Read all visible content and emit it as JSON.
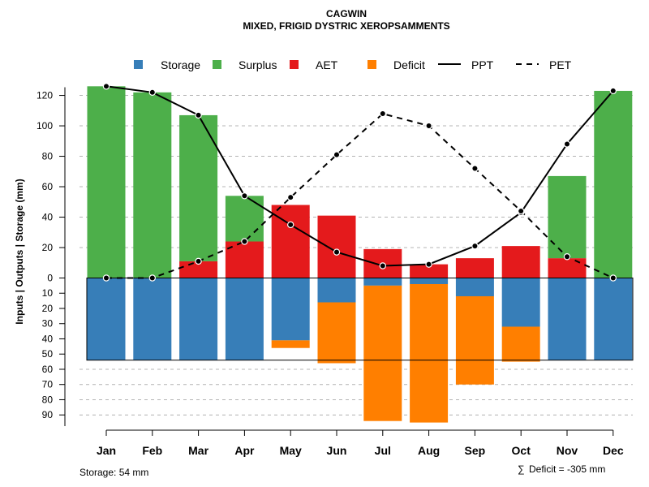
{
  "chart_data": {
    "type": "bar",
    "title": "CAGWIN",
    "subtitle": "MIXED, FRIGID DYSTRIC XEROPSAMMENTS",
    "ylabel": "Inputs | Outputs | Storage    (mm)",
    "categories": [
      "Jan",
      "Feb",
      "Mar",
      "Apr",
      "May",
      "Jun",
      "Jul",
      "Aug",
      "Sep",
      "Oct",
      "Nov",
      "Dec"
    ],
    "y_upper_ticks": [
      0,
      20,
      40,
      60,
      80,
      100,
      120
    ],
    "y_lower_ticks": [
      10,
      20,
      30,
      40,
      50,
      60,
      70,
      80,
      90
    ],
    "ylim_upper": [
      0,
      130
    ],
    "ylim_lower": [
      0,
      97
    ],
    "storage_capacity": 54,
    "legend": {
      "storage": "Storage",
      "surplus": "Surplus",
      "aet": "AET",
      "deficit": "Deficit",
      "ppt": "PPT",
      "pet": "PET"
    },
    "colors": {
      "storage": "#377EB8",
      "surplus": "#4DAF4A",
      "aet": "#E41A1C",
      "deficit": "#FF7F00",
      "ppt": "#000000",
      "pet": "#000000"
    },
    "series": [
      {
        "name": "AET",
        "values": [
          0,
          0,
          11,
          24,
          48,
          41,
          19,
          9,
          13,
          21,
          13,
          0
        ]
      },
      {
        "name": "Surplus",
        "values": [
          126,
          122,
          96,
          30,
          0,
          0,
          0,
          0,
          0,
          0,
          54,
          123
        ]
      },
      {
        "name": "Storage",
        "values": [
          54,
          54,
          54,
          54,
          41,
          16,
          5,
          4,
          12,
          32,
          54,
          54
        ]
      },
      {
        "name": "Deficit",
        "values": [
          0,
          0,
          0,
          0,
          5,
          40,
          89,
          91,
          58,
          23,
          0,
          0
        ]
      },
      {
        "name": "PPT",
        "values": [
          126,
          122,
          107,
          54,
          35,
          17,
          8,
          9,
          21,
          43,
          88,
          123
        ]
      },
      {
        "name": "PET",
        "values": [
          0,
          0,
          11,
          24,
          53,
          81,
          108,
          100,
          72,
          44,
          14,
          0
        ]
      }
    ]
  },
  "footer": {
    "storage_note": "Storage: 54 mm",
    "deficit_symbol": "∑",
    "deficit_note": "Deficit = -305 mm"
  }
}
